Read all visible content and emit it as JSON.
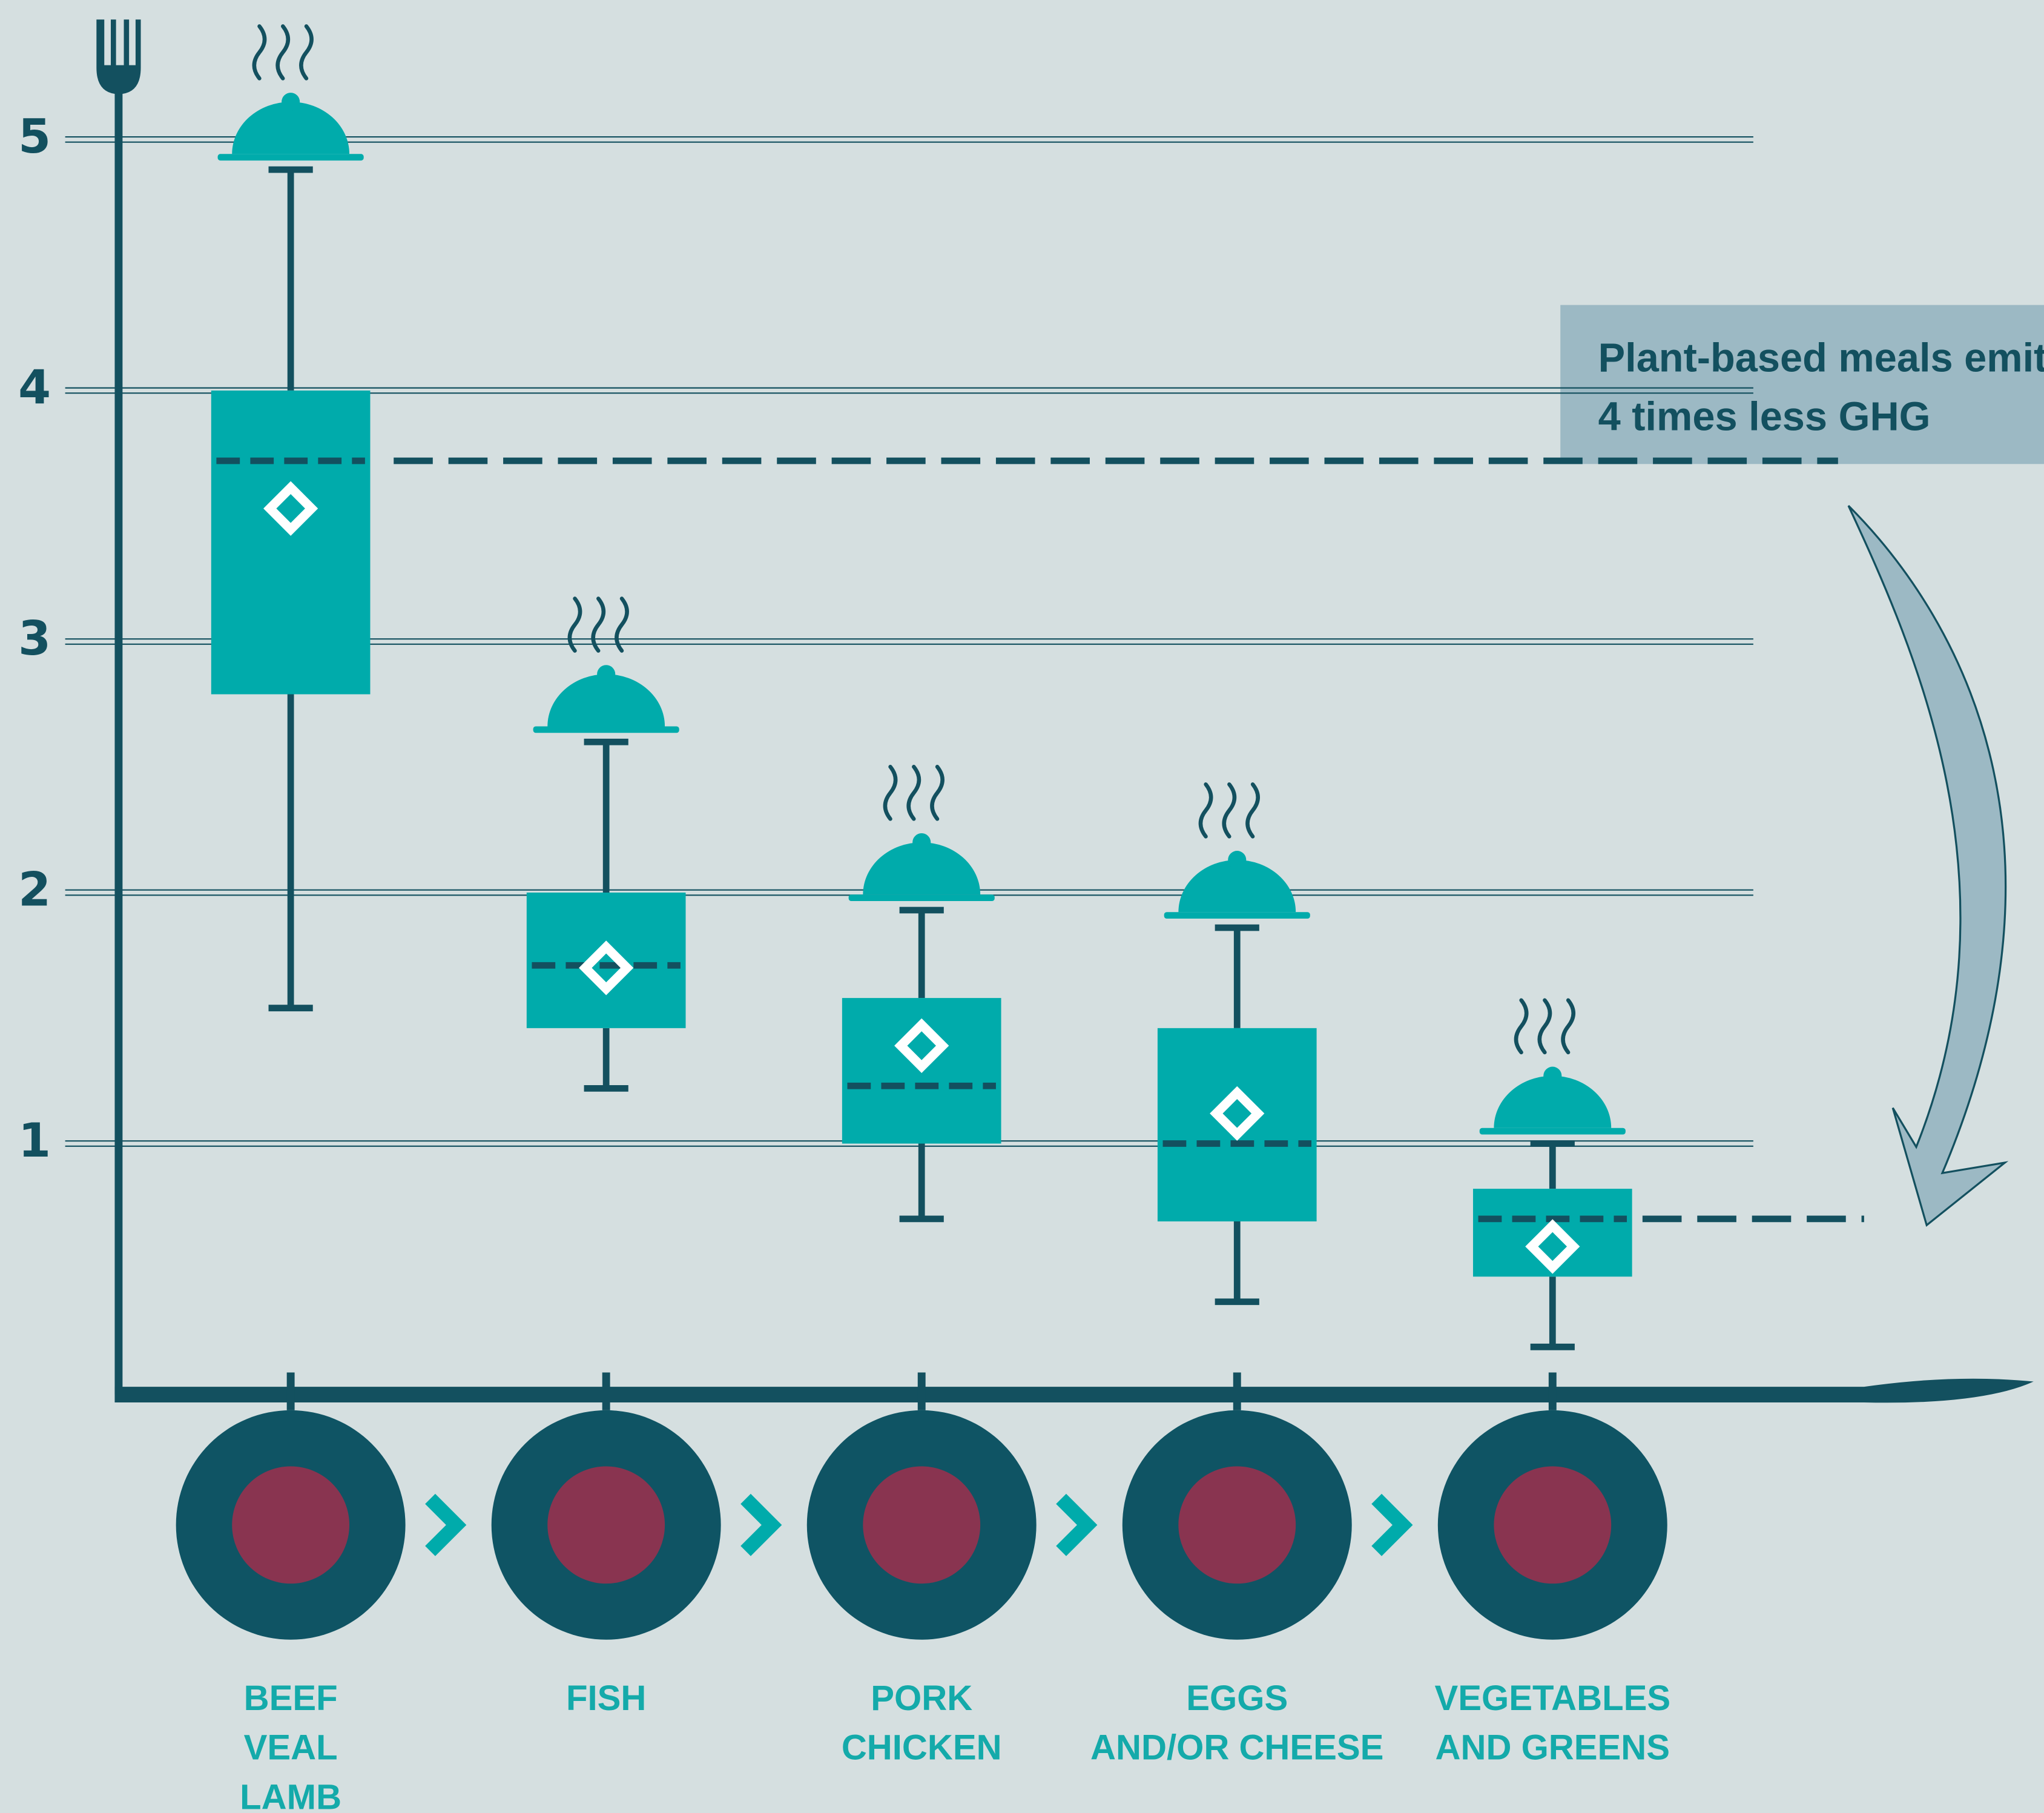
{
  "chart_data": {
    "type": "box",
    "categories": [
      [
        "BEEF",
        "VEAL",
        "LAMB"
      ],
      [
        "FISH"
      ],
      [
        "PORK",
        "CHICKEN"
      ],
      [
        "EGGS",
        "AND/OR CHEESE"
      ],
      [
        "VEGETABLES",
        "AND GREENS"
      ]
    ],
    "min": [
      1.54,
      1.22,
      0.7,
      0.37,
      0.19
    ],
    "q1": [
      2.79,
      1.46,
      1.0,
      0.69,
      0.47
    ],
    "median": [
      3.72,
      1.71,
      1.23,
      1.0,
      0.7
    ],
    "mean": [
      3.53,
      1.7,
      1.39,
      1.12,
      0.59
    ],
    "q3": [
      4.0,
      2.0,
      1.58,
      1.46,
      0.82
    ],
    "max": [
      4.88,
      2.6,
      1.93,
      1.86,
      1.0
    ],
    "color": "#00abab",
    "ylim": [
      0,
      5.4
    ],
    "yticks": [
      1,
      2,
      3,
      4,
      5
    ],
    "grid": true,
    "annotation": [
      "Plant-based meals emit",
      "4 times less GHG"
    ]
  }
}
